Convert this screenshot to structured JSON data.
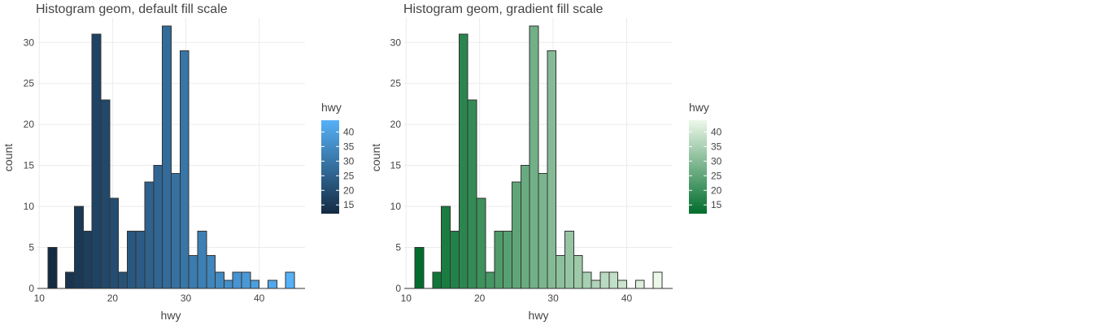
{
  "chart_data": [
    {
      "type": "bar",
      "title": "Histogram geom, default fill scale",
      "xlabel": "hwy",
      "ylabel": "count",
      "xlim": [
        9.75,
        46.25
      ],
      "ylim": [
        0,
        33
      ],
      "xticks": [
        10,
        20,
        30,
        40
      ],
      "yticks": [
        0,
        5,
        10,
        15,
        20,
        25,
        30
      ],
      "bin_width": 1.2,
      "bins": [
        {
          "x": 11.8,
          "count": 5
        },
        {
          "x": 13.0,
          "count": 0
        },
        {
          "x": 14.2,
          "count": 2
        },
        {
          "x": 15.4,
          "count": 10
        },
        {
          "x": 16.6,
          "count": 7
        },
        {
          "x": 17.8,
          "count": 31
        },
        {
          "x": 19.0,
          "count": 23
        },
        {
          "x": 20.2,
          "count": 11
        },
        {
          "x": 21.4,
          "count": 2
        },
        {
          "x": 22.6,
          "count": 7
        },
        {
          "x": 23.8,
          "count": 7
        },
        {
          "x": 25.0,
          "count": 13
        },
        {
          "x": 26.2,
          "count": 15
        },
        {
          "x": 27.4,
          "count": 32
        },
        {
          "x": 28.6,
          "count": 14
        },
        {
          "x": 29.8,
          "count": 29
        },
        {
          "x": 31.0,
          "count": 4
        },
        {
          "x": 32.2,
          "count": 7
        },
        {
          "x": 33.4,
          "count": 4
        },
        {
          "x": 34.6,
          "count": 2
        },
        {
          "x": 35.8,
          "count": 1
        },
        {
          "x": 37.0,
          "count": 2
        },
        {
          "x": 38.2,
          "count": 2
        },
        {
          "x": 39.4,
          "count": 1
        },
        {
          "x": 40.6,
          "count": 0
        },
        {
          "x": 41.8,
          "count": 1
        },
        {
          "x": 43.0,
          "count": 0
        },
        {
          "x": 44.2,
          "count": 2
        }
      ],
      "legend": {
        "title": "hwy",
        "ticks": [
          15,
          20,
          25,
          30,
          35,
          40
        ],
        "range": [
          12,
          44
        ],
        "low_color": "#132B43",
        "high_color": "#56B1F7"
      },
      "grid": true,
      "legend_position": "right"
    },
    {
      "type": "bar",
      "title": "Histogram geom, gradient fill scale",
      "xlabel": "hwy",
      "ylabel": "count",
      "xlim": [
        9.75,
        46.25
      ],
      "ylim": [
        0,
        33
      ],
      "xticks": [
        10,
        20,
        30,
        40
      ],
      "yticks": [
        0,
        5,
        10,
        15,
        20,
        25,
        30
      ],
      "bin_width": 1.2,
      "bins": [
        {
          "x": 11.8,
          "count": 5
        },
        {
          "x": 13.0,
          "count": 0
        },
        {
          "x": 14.2,
          "count": 2
        },
        {
          "x": 15.4,
          "count": 10
        },
        {
          "x": 16.6,
          "count": 7
        },
        {
          "x": 17.8,
          "count": 31
        },
        {
          "x": 19.0,
          "count": 23
        },
        {
          "x": 20.2,
          "count": 11
        },
        {
          "x": 21.4,
          "count": 2
        },
        {
          "x": 22.6,
          "count": 7
        },
        {
          "x": 23.8,
          "count": 7
        },
        {
          "x": 25.0,
          "count": 13
        },
        {
          "x": 26.2,
          "count": 15
        },
        {
          "x": 27.4,
          "count": 32
        },
        {
          "x": 28.6,
          "count": 14
        },
        {
          "x": 29.8,
          "count": 29
        },
        {
          "x": 31.0,
          "count": 4
        },
        {
          "x": 32.2,
          "count": 7
        },
        {
          "x": 33.4,
          "count": 4
        },
        {
          "x": 34.6,
          "count": 2
        },
        {
          "x": 35.8,
          "count": 1
        },
        {
          "x": 37.0,
          "count": 2
        },
        {
          "x": 38.2,
          "count": 2
        },
        {
          "x": 39.4,
          "count": 1
        },
        {
          "x": 40.6,
          "count": 0
        },
        {
          "x": 41.8,
          "count": 1
        },
        {
          "x": 43.0,
          "count": 0
        },
        {
          "x": 44.2,
          "count": 2
        }
      ],
      "legend": {
        "title": "hwy",
        "ticks": [
          15,
          20,
          25,
          30,
          35,
          40
        ],
        "range": [
          12,
          44
        ],
        "low_color": "#006D2C",
        "high_color": "#EDF8E9"
      },
      "grid": true,
      "legend_position": "right"
    }
  ]
}
